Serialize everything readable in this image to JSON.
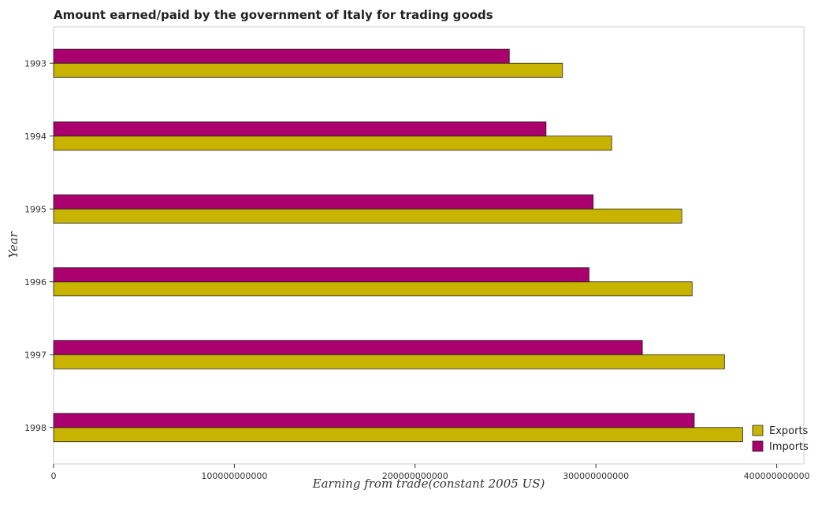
{
  "chart_data": {
    "type": "bar",
    "orientation": "horizontal",
    "title": "Amount earned/paid by the government of Italy for trading goods",
    "xlabel": "Earning from trade(constant 2005 US)",
    "ylabel": "Year",
    "categories": [
      "1993",
      "1994",
      "1995",
      "1996",
      "1997",
      "1998"
    ],
    "series": [
      {
        "name": "Exports",
        "color": "#c8b400",
        "values": [
          281500000000,
          308700000000,
          347500000000,
          353200000000,
          371100000000,
          381200000000
        ]
      },
      {
        "name": "Imports",
        "color": "#a9006e",
        "values": [
          252100000000,
          272400000000,
          298500000000,
          296200000000,
          325700000000,
          354400000000
        ]
      }
    ],
    "xlim": [
      0,
      415000000000
    ],
    "xticks": [
      {
        "value": 0,
        "label": "0"
      },
      {
        "value": 100000000000,
        "label": "100000000000"
      },
      {
        "value": 200000000000,
        "label": "200000000000"
      },
      {
        "value": 300000000000,
        "label": "300000000000"
      },
      {
        "value": 400000000000,
        "label": "400000000000"
      }
    ],
    "grid": false,
    "legend_position": "bottom-right"
  }
}
